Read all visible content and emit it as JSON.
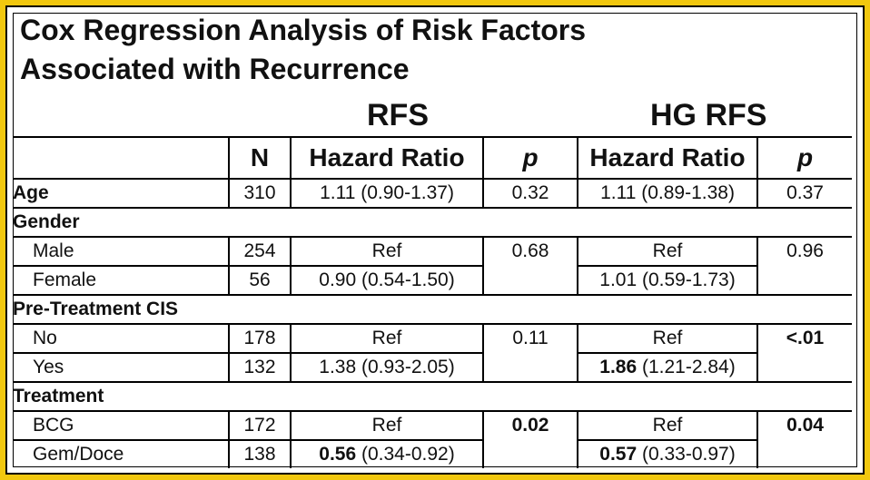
{
  "title_line1": "Cox Regression Analysis of Risk Factors",
  "title_line2": "Associated with Recurrence",
  "groups": {
    "rfs": "RFS",
    "hg_rfs": "HG RFS"
  },
  "headers": {
    "n": "N",
    "hr1": "Hazard Ratio",
    "p1": "p",
    "hr2": "Hazard Ratio",
    "p2": "p"
  },
  "rows": {
    "age": {
      "label": "Age",
      "n": "310",
      "hr1": "1.11 (0.90-1.37)",
      "p1": "0.32",
      "hr2": "1.11 (0.89-1.38)",
      "p2": "0.37"
    },
    "gender": {
      "label": "Gender"
    },
    "male": {
      "label": "Male",
      "n": "254",
      "hr1": "Ref",
      "p1": "0.68",
      "hr2": "Ref",
      "p2": "0.96"
    },
    "female": {
      "label": "Female",
      "n": "56",
      "hr1": "0.90 (0.54-1.50)",
      "hr2": "1.01 (0.59-1.73)"
    },
    "cis": {
      "label": "Pre-Treatment CIS"
    },
    "no": {
      "label": "No",
      "n": "178",
      "hr1": "Ref",
      "p1": "0.11",
      "hr2": "Ref",
      "p2": "<.01"
    },
    "yes": {
      "label": "Yes",
      "n": "132",
      "hr1": "1.38 (0.93-2.05)",
      "hr2_bold": "1.86",
      "hr2_rest": " (1.21-2.84)"
    },
    "treatment": {
      "label": "Treatment"
    },
    "bcg": {
      "label": "BCG",
      "n": "172",
      "hr1": "Ref",
      "p1": "0.02",
      "hr2": "Ref",
      "p2": "0.04"
    },
    "gem": {
      "label": "Gem/Doce",
      "n": "138",
      "hr1_bold": "0.56",
      "hr1_rest": " (0.34-0.92)",
      "hr2_bold": "0.57",
      "hr2_rest": " (0.33-0.97)"
    }
  },
  "colors": {
    "border": "#f2c80f",
    "text": "#111111"
  }
}
